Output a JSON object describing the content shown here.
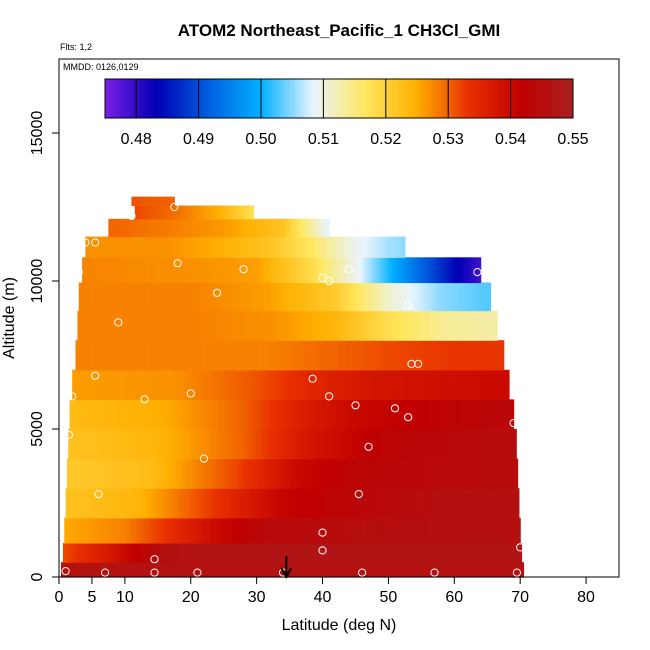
{
  "chart_data": {
    "type": "heatmap",
    "title": "ATOM2 Northeast_Pacific_1 CH3Cl_GMI",
    "flights_label": "Flts: 1,2",
    "mmdd_label": "MMDD: 0126,0129",
    "xlabel": "Latitude (deg N)",
    "ylabel": "Altitude (m)",
    "xlim": [
      0,
      85
    ],
    "ylim": [
      0,
      17500
    ],
    "x_ticks": [
      0,
      5,
      10,
      20,
      30,
      40,
      50,
      60,
      70,
      80
    ],
    "x_tick_labels": [
      "0",
      "5",
      "10",
      "20",
      "30",
      "40",
      "50",
      "60",
      "70",
      "80"
    ],
    "y_ticks": [
      0,
      5000,
      10000,
      15000
    ],
    "y_tick_labels": [
      "0",
      "5000",
      "10000",
      "15000"
    ],
    "colorbar": {
      "min": 0.475,
      "max": 0.55,
      "ticks": [
        0.48,
        0.49,
        0.5,
        0.51,
        0.52,
        0.53,
        0.54,
        0.55
      ],
      "tick_labels": [
        "0.48",
        "0.49",
        "0.50",
        "0.51",
        "0.52",
        "0.53",
        "0.54",
        "0.55"
      ],
      "colors": [
        "#7a1fe6",
        "#0000b4",
        "#0060e0",
        "#00b0ff",
        "#e8f4ff",
        "#ffe860",
        "#ffae00",
        "#e83000",
        "#c00000",
        "#a82020"
      ]
    },
    "bands": [
      {
        "alt": 200,
        "lat_start": 0.3,
        "lat_end": 70.5,
        "values": [
          [
            0,
            0.546
          ],
          [
            70,
            0.546
          ]
        ]
      },
      {
        "alt": 800,
        "lat_start": 0.6,
        "lat_end": 70.2,
        "values": [
          [
            0,
            0.531
          ],
          [
            7,
            0.537
          ],
          [
            16,
            0.546
          ],
          [
            25,
            0.547
          ],
          [
            70,
            0.547
          ]
        ]
      },
      {
        "alt": 1500,
        "lat_start": 0.8,
        "lat_end": 70.0,
        "values": [
          [
            0,
            0.525
          ],
          [
            10,
            0.528
          ],
          [
            24,
            0.54
          ],
          [
            32,
            0.544
          ],
          [
            45,
            0.545
          ],
          [
            70,
            0.546
          ]
        ]
      },
      {
        "alt": 2500,
        "lat_start": 1.0,
        "lat_end": 69.8,
        "values": [
          [
            0,
            0.522
          ],
          [
            12,
            0.524
          ],
          [
            26,
            0.535
          ],
          [
            34,
            0.541
          ],
          [
            43,
            0.543
          ],
          [
            55,
            0.545
          ],
          [
            70,
            0.546
          ]
        ]
      },
      {
        "alt": 3500,
        "lat_start": 1.2,
        "lat_end": 69.6,
        "values": [
          [
            0,
            0.521
          ],
          [
            14,
            0.523
          ],
          [
            27,
            0.532
          ],
          [
            36,
            0.54
          ],
          [
            45,
            0.543
          ],
          [
            70,
            0.545
          ]
        ]
      },
      {
        "alt": 4500,
        "lat_start": 1.4,
        "lat_end": 69.4,
        "values": [
          [
            0,
            0.522
          ],
          [
            15,
            0.524
          ],
          [
            28,
            0.53
          ],
          [
            38,
            0.538
          ],
          [
            50,
            0.543
          ],
          [
            70,
            0.545
          ]
        ]
      },
      {
        "alt": 5500,
        "lat_start": 1.6,
        "lat_end": 69.0,
        "values": [
          [
            0,
            0.523
          ],
          [
            16,
            0.525
          ],
          [
            28,
            0.53
          ],
          [
            36,
            0.536
          ],
          [
            44,
            0.54
          ],
          [
            55,
            0.542
          ],
          [
            70,
            0.544
          ]
        ]
      },
      {
        "alt": 6500,
        "lat_start": 2.0,
        "lat_end": 68.3,
        "values": [
          [
            0,
            0.526
          ],
          [
            18,
            0.527
          ],
          [
            30,
            0.531
          ],
          [
            38,
            0.535
          ],
          [
            48,
            0.538
          ],
          [
            58,
            0.539
          ],
          [
            68,
            0.54
          ]
        ]
      },
      {
        "alt": 7500,
        "lat_start": 2.5,
        "lat_end": 67.5,
        "values": [
          [
            0,
            0.528
          ],
          [
            20,
            0.528
          ],
          [
            32,
            0.528
          ],
          [
            42,
            0.53
          ],
          [
            52,
            0.532
          ],
          [
            60,
            0.533
          ],
          [
            68,
            0.533
          ]
        ]
      },
      {
        "alt": 8500,
        "lat_start": 2.8,
        "lat_end": 66.5,
        "values": [
          [
            0,
            0.528
          ],
          [
            20,
            0.528
          ],
          [
            32,
            0.527
          ],
          [
            42,
            0.524
          ],
          [
            50,
            0.518
          ],
          [
            58,
            0.514
          ],
          [
            66,
            0.513
          ]
        ]
      },
      {
        "alt": 9500,
        "lat_start": 3.0,
        "lat_end": 65.5,
        "values": [
          [
            0,
            0.528
          ],
          [
            20,
            0.528
          ],
          [
            32,
            0.526
          ],
          [
            42,
            0.521
          ],
          [
            50,
            0.511
          ],
          [
            58,
            0.505
          ],
          [
            65,
            0.503
          ]
        ]
      },
      {
        "alt": 10400,
        "lat_start": 3.5,
        "lat_end": 64.0,
        "values": [
          [
            0,
            0.528
          ],
          [
            20,
            0.527
          ],
          [
            30,
            0.526
          ],
          [
            38,
            0.519
          ],
          [
            46,
            0.508
          ],
          [
            54,
            0.494
          ],
          [
            60,
            0.484
          ],
          [
            64,
            0.479
          ]
        ]
      },
      {
        "alt": 11200,
        "lat_start": 4.0,
        "lat_end": 52.5,
        "values": [
          [
            0,
            0.527
          ],
          [
            16,
            0.527
          ],
          [
            24,
            0.525
          ],
          [
            32,
            0.522
          ],
          [
            38,
            0.517
          ],
          [
            44,
            0.51
          ],
          [
            50,
            0.506
          ],
          [
            52.5,
            0.505
          ]
        ]
      },
      {
        "alt": 11800,
        "lat_start": 7.5,
        "lat_end": 41.0,
        "values": [
          [
            7,
            0.53
          ],
          [
            18,
            0.528
          ],
          [
            26,
            0.526
          ],
          [
            34,
            0.522
          ],
          [
            41,
            0.508
          ]
        ]
      },
      {
        "alt": 12400,
        "lat_start": 11.5,
        "lat_end": 29.5,
        "values": [
          [
            11,
            0.532
          ],
          [
            18,
            0.529
          ],
          [
            24,
            0.525
          ],
          [
            29.5,
            0.518
          ]
        ]
      },
      {
        "alt": 12700,
        "lat_start": 11.0,
        "lat_end": 17.5,
        "values": [
          [
            11,
            0.531
          ],
          [
            17.5,
            0.53
          ]
        ]
      }
    ],
    "sample_points": [
      [
        1.0,
        200
      ],
      [
        7,
        150
      ],
      [
        14.5,
        150
      ],
      [
        21,
        150
      ],
      [
        34,
        150
      ],
      [
        46,
        150
      ],
      [
        57,
        150
      ],
      [
        69.5,
        150
      ],
      [
        14.5,
        600
      ],
      [
        40,
        900
      ],
      [
        70,
        1000
      ],
      [
        40,
        1500
      ],
      [
        6,
        2800
      ],
      [
        45.5,
        2800
      ],
      [
        22,
        4000
      ],
      [
        47,
        4400
      ],
      [
        1.5,
        4800
      ],
      [
        69,
        5200
      ],
      [
        2,
        6100
      ],
      [
        13,
        6000
      ],
      [
        20,
        6200
      ],
      [
        41,
        6100
      ],
      [
        45,
        5800
      ],
      [
        51,
        5700
      ],
      [
        53,
        5400
      ],
      [
        5.5,
        6800
      ],
      [
        38.5,
        6700
      ],
      [
        53.5,
        7200
      ],
      [
        54.5,
        7200
      ],
      [
        9,
        8600
      ],
      [
        24,
        9600
      ],
      [
        53,
        9200
      ],
      [
        3,
        10300
      ],
      [
        18,
        10600
      ],
      [
        41,
        10000
      ],
      [
        40,
        10100
      ],
      [
        28,
        10400
      ],
      [
        44,
        10400
      ],
      [
        63.5,
        10300
      ],
      [
        4,
        11300
      ],
      [
        5.5,
        11300
      ],
      [
        11,
        12200
      ],
      [
        17.5,
        12500
      ]
    ],
    "arrow_marker_lat": 34.5
  }
}
